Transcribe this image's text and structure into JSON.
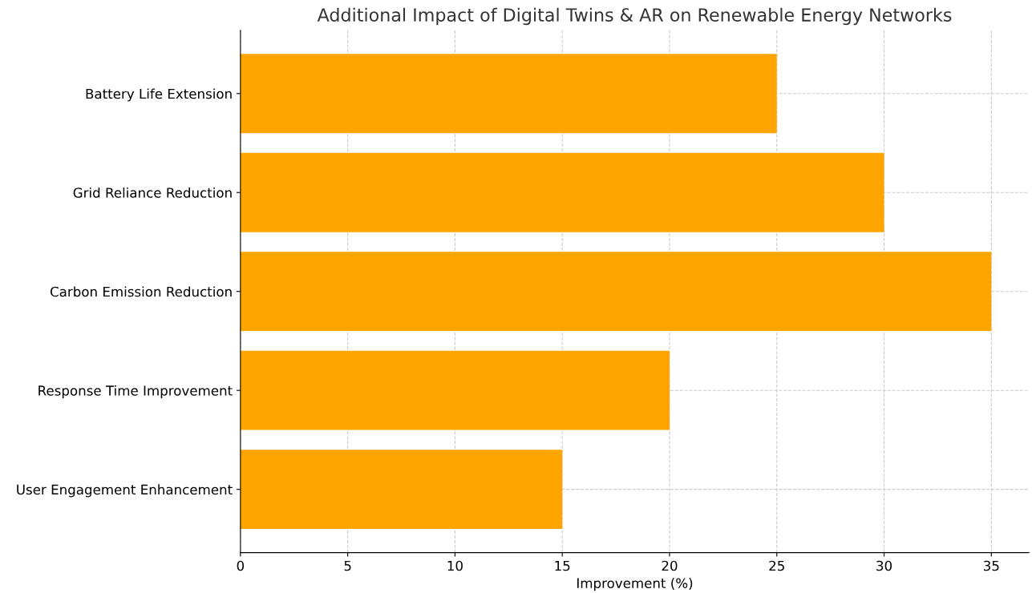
{
  "chart_data": {
    "type": "bar",
    "orientation": "horizontal",
    "title": "Additional Impact of Digital Twins & AR on Renewable Energy Networks",
    "xlabel": "Improvement (%)",
    "categories": [
      "Battery Life Extension",
      "Grid Reliance Reduction",
      "Carbon Emission Reduction",
      "Response Time Improvement",
      "User Engagement Enhancement"
    ],
    "values": [
      25,
      30,
      35,
      20,
      15
    ],
    "color": "#ffa500",
    "xlim": [
      0,
      36.75
    ],
    "xticks": [
      0,
      5,
      10,
      15,
      20,
      25,
      30,
      35
    ],
    "grid": true
  }
}
